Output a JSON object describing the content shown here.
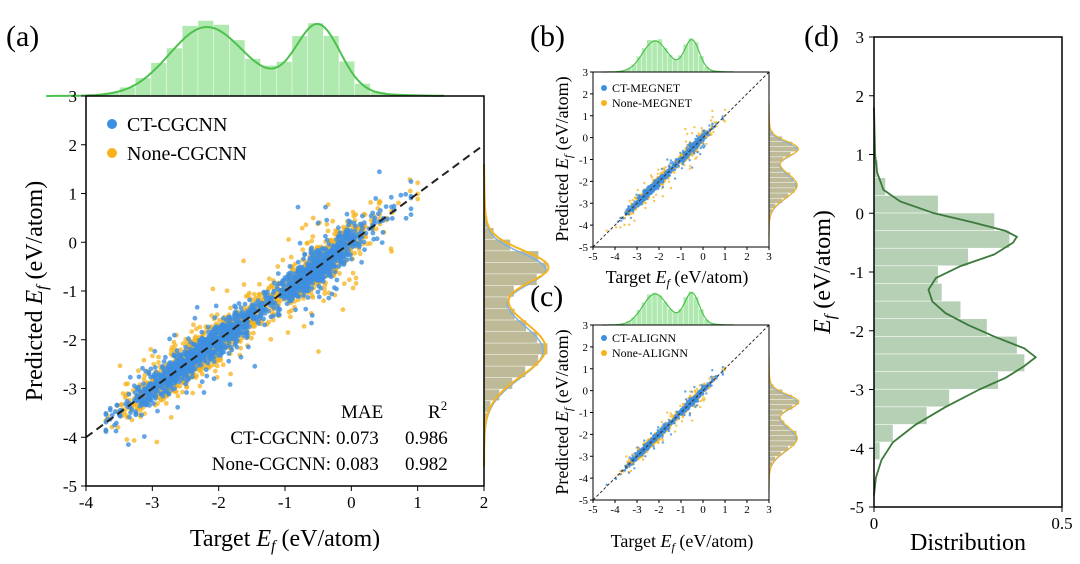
{
  "colors": {
    "ct": "#3d8fe0",
    "none": "#f5b31c",
    "marg": "#4cc24c",
    "margFill": "#8fe08f",
    "dist": "#3b7a3b",
    "distFill": "#a8c8a8"
  },
  "chart_data": [
    {
      "panel": "(a)",
      "type": "scatter",
      "xlabel_main": "Target ",
      "xlabel_var": "E",
      "xlabel_sub": "f",
      "xlabel_unit": " (eV/atom)",
      "ylabel_main": "Predicted ",
      "ylabel_var": "E",
      "ylabel_sub": "f",
      "ylabel_unit": " (eV/atom)",
      "xlim": [
        -4,
        2
      ],
      "ylim": [
        -5,
        3
      ],
      "xticks": [
        "-4",
        "-3",
        "-2",
        "-1",
        "0",
        "1",
        "2"
      ],
      "yticks": [
        "-5",
        "-4",
        "-3",
        "-2",
        "-1",
        "0",
        "1",
        "2",
        "3"
      ],
      "legend": [
        "CT-CGCNN",
        "None-CGCNN"
      ],
      "legend_position": "top-left",
      "parity_line": true,
      "stats_header": [
        "MAE",
        "R2"
      ],
      "stats": [
        {
          "model": "CT-CGCNN:",
          "mae": "0.073",
          "r2": "0.986"
        },
        {
          "model": "None-CGCNN:",
          "mae": "0.083",
          "r2": "0.982"
        }
      ],
      "marginals": true
    },
    {
      "panel": "(b)",
      "type": "scatter",
      "xlabel_main": "Target ",
      "xlabel_var": "E",
      "xlabel_sub": "f",
      "xlabel_unit": " (eV/atom)",
      "ylabel_main": "Predicted ",
      "ylabel_var": "E",
      "ylabel_sub": "f",
      "ylabel_unit": " (eV/atom)",
      "xlim": [
        -5,
        3
      ],
      "ylim": [
        -5,
        3
      ],
      "xticks": [
        "-5",
        "-4",
        "-3",
        "-2",
        "-1",
        "0",
        "1",
        "2",
        "3"
      ],
      "yticks": [
        "-5",
        "-4",
        "-3",
        "-2",
        "-1",
        "0",
        "1",
        "2",
        "3"
      ],
      "legend": [
        "CT-MEGNET",
        "None-MEGNET"
      ],
      "legend_position": "top-left",
      "parity_line": true,
      "marginals": true
    },
    {
      "panel": "(c)",
      "type": "scatter",
      "xlabel_main": "Target ",
      "xlabel_var": "E",
      "xlabel_sub": "f",
      "xlabel_unit": " (eV/atom)",
      "ylabel_main": "Predicted ",
      "ylabel_var": "E",
      "ylabel_sub": "f",
      "ylabel_unit": " (eV/atom)",
      "xlim": [
        -5,
        3
      ],
      "ylim": [
        -5,
        3
      ],
      "xticks": [
        "-5",
        "-4",
        "-3",
        "-2",
        "-1",
        "0",
        "1",
        "2",
        "3"
      ],
      "yticks": [
        "-5",
        "-4",
        "-3",
        "-2",
        "-1",
        "0",
        "1",
        "2",
        "3"
      ],
      "legend": [
        "CT-ALIGNN",
        "None-ALIGNN"
      ],
      "legend_position": "top-left",
      "parity_line": true,
      "marginals": true
    },
    {
      "panel": "(d)",
      "type": "histogram",
      "orientation": "horizontal",
      "xlabel": "Distribution",
      "ylabel_var": "E",
      "ylabel_sub": "f",
      "ylabel_unit": " (eV/atom)",
      "xlim": [
        0,
        0.5
      ],
      "ylim": [
        -5,
        3
      ],
      "xticks": [
        "0",
        "0.5"
      ],
      "yticks": [
        "-5",
        "-4",
        "-3",
        "-2",
        "-1",
        "0",
        "1",
        "2",
        "3"
      ],
      "bins": [
        {
          "y0": -4.2,
          "y1": -3.9,
          "density": 0.015
        },
        {
          "y0": -3.9,
          "y1": -3.6,
          "density": 0.05
        },
        {
          "y0": -3.6,
          "y1": -3.3,
          "density": 0.14
        },
        {
          "y0": -3.3,
          "y1": -3.0,
          "density": 0.2
        },
        {
          "y0": -3.0,
          "y1": -2.7,
          "density": 0.33
        },
        {
          "y0": -2.7,
          "y1": -2.4,
          "density": 0.4
        },
        {
          "y0": -2.4,
          "y1": -2.1,
          "density": 0.38
        },
        {
          "y0": -2.1,
          "y1": -1.8,
          "density": 0.3
        },
        {
          "y0": -1.8,
          "y1": -1.5,
          "density": 0.23
        },
        {
          "y0": -1.5,
          "y1": -1.2,
          "density": 0.18
        },
        {
          "y0": -1.2,
          "y1": -0.9,
          "density": 0.17
        },
        {
          "y0": -0.9,
          "y1": -0.6,
          "density": 0.25
        },
        {
          "y0": -0.6,
          "y1": -0.3,
          "density": 0.36
        },
        {
          "y0": -0.3,
          "y1": 0.0,
          "density": 0.32
        },
        {
          "y0": 0.0,
          "y1": 0.3,
          "density": 0.17
        },
        {
          "y0": 0.3,
          "y1": 0.6,
          "density": 0.03
        },
        {
          "y0": 0.6,
          "y1": 0.9,
          "density": 0.01
        }
      ],
      "kde": [
        [
          -4.8,
          0.0
        ],
        [
          -4.5,
          0.005
        ],
        [
          -4.2,
          0.02
        ],
        [
          -3.9,
          0.05
        ],
        [
          -3.6,
          0.11
        ],
        [
          -3.3,
          0.19
        ],
        [
          -3.0,
          0.28
        ],
        [
          -2.8,
          0.35
        ],
        [
          -2.6,
          0.4
        ],
        [
          -2.45,
          0.43
        ],
        [
          -2.3,
          0.4
        ],
        [
          -2.1,
          0.32
        ],
        [
          -1.9,
          0.25
        ],
        [
          -1.7,
          0.19
        ],
        [
          -1.5,
          0.155
        ],
        [
          -1.3,
          0.145
        ],
        [
          -1.1,
          0.165
        ],
        [
          -0.9,
          0.23
        ],
        [
          -0.7,
          0.32
        ],
        [
          -0.5,
          0.37
        ],
        [
          -0.4,
          0.38
        ],
        [
          -0.3,
          0.35
        ],
        [
          -0.15,
          0.26
        ],
        [
          0.0,
          0.16
        ],
        [
          0.2,
          0.07
        ],
        [
          0.4,
          0.025
        ],
        [
          0.7,
          0.008
        ],
        [
          1.0,
          0.003
        ],
        [
          1.5,
          0.001
        ],
        [
          1.8,
          0.0
        ]
      ]
    }
  ]
}
